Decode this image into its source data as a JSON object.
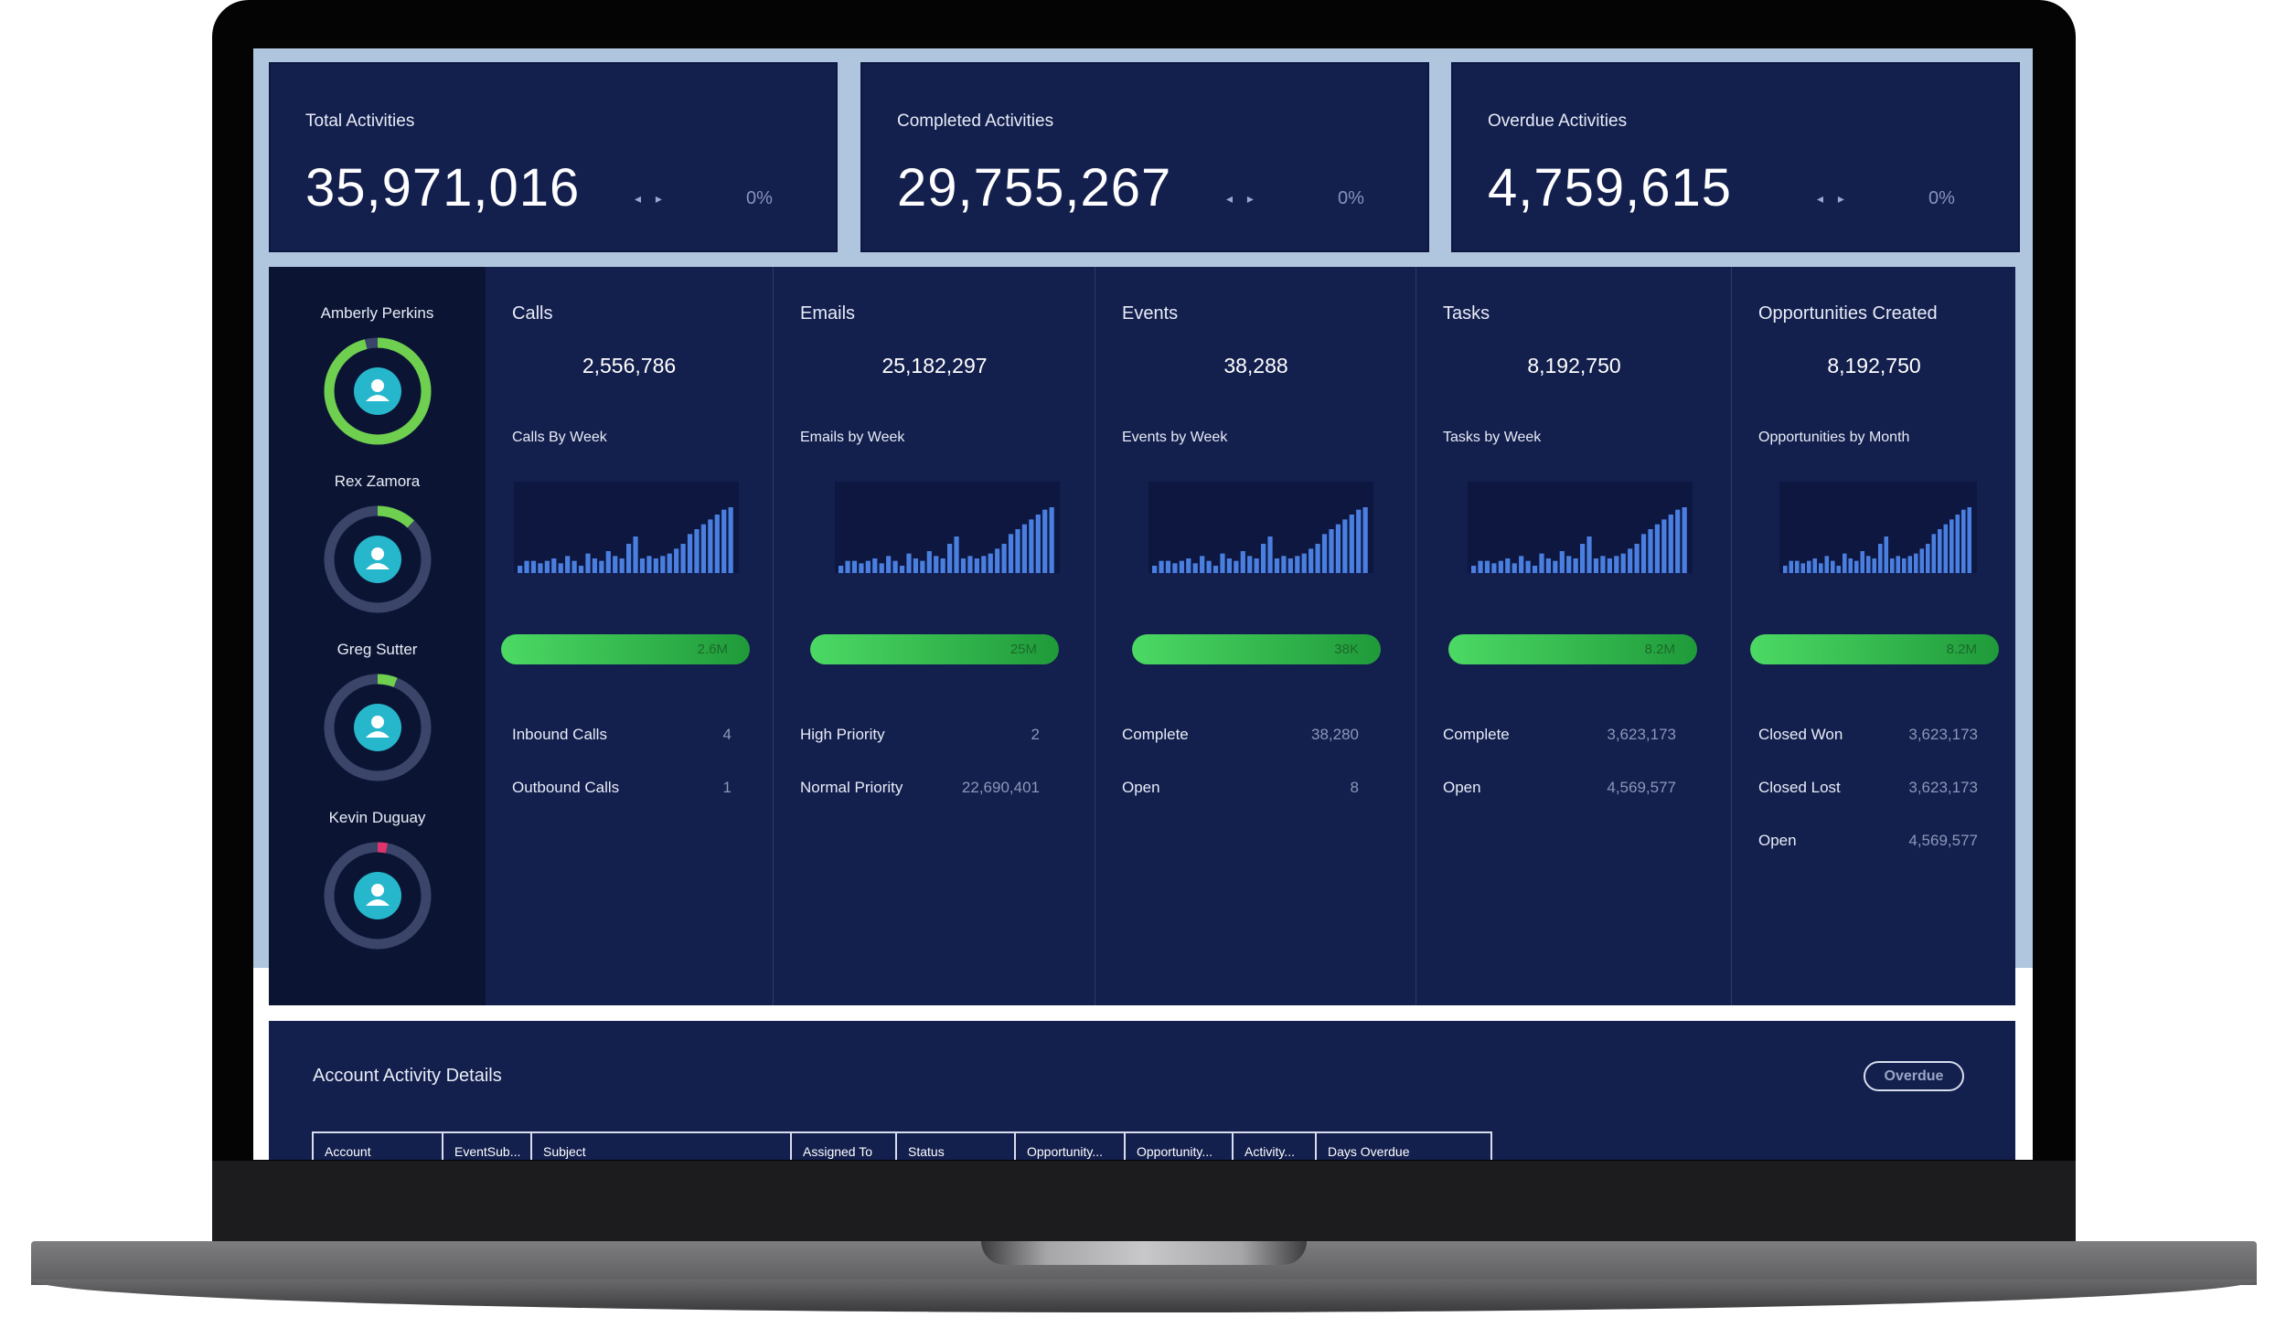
{
  "colors": {
    "panel_bg": "#131f4d",
    "sidebar_bg": "#0b1533",
    "screen_bg": "#b0c6de",
    "accent_green": "#4cd964",
    "bar_blue": "#4a7fe0",
    "ring_track": "#3a4569",
    "avatar_teal": "#26b7cc",
    "overdue_marker": "#e0336b"
  },
  "kpis": [
    {
      "title": "Total Activities",
      "value": "35,971,016",
      "arrows": "◂ ▸",
      "pct": "0%"
    },
    {
      "title": "Completed Activities",
      "value": "29,755,267",
      "arrows": "◂ ▸",
      "pct": "0%"
    },
    {
      "title": "Overdue Activities",
      "value": "4,759,615",
      "arrows": "◂ ▸",
      "pct": "0%"
    }
  ],
  "people": [
    {
      "name": "Amberly Perkins",
      "icon": "user-avatar-icon",
      "ring_fraction": 0.96,
      "ring_color": "#6fcf4f"
    },
    {
      "name": "Rex Zamora",
      "icon": "user-avatar-icon",
      "ring_fraction": 0.12,
      "ring_color": "#6fcf4f"
    },
    {
      "name": "Greg Sutter",
      "icon": "user-avatar-icon",
      "ring_fraction": 0.06,
      "ring_color": "#6fcf4f"
    },
    {
      "name": "Kevin Duguay",
      "icon": "user-avatar-icon",
      "ring_fraction": 0.03,
      "ring_color": "#e0336b"
    }
  ],
  "metrics": [
    {
      "title": "Calls",
      "value": "2,556,786",
      "chart_title": "Calls By Week",
      "progress_label": "2.6M",
      "progress_fraction": 1.0,
      "rows": [
        {
          "label": "Inbound Calls",
          "value": "4"
        },
        {
          "label": "Outbound Calls",
          "value": "1"
        }
      ]
    },
    {
      "title": "Emails",
      "value": "25,182,297",
      "chart_title": "Emails by Week",
      "progress_label": "25M",
      "progress_fraction": 1.0,
      "rows": [
        {
          "label": "High Priority",
          "value": "2"
        },
        {
          "label": "Normal Priority",
          "value": "22,690,401"
        }
      ]
    },
    {
      "title": "Events",
      "value": "38,288",
      "chart_title": "Events by Week",
      "progress_label": "38K",
      "progress_fraction": 1.0,
      "rows": [
        {
          "label": "Complete",
          "value": "38,280"
        },
        {
          "label": "Open",
          "value": "8"
        }
      ]
    },
    {
      "title": "Tasks",
      "value": "8,192,750",
      "chart_title": "Tasks by Week",
      "progress_label": "8.2M",
      "progress_fraction": 1.0,
      "rows": [
        {
          "label": "Complete",
          "value": "3,623,173"
        },
        {
          "label": "Open",
          "value": "4,569,577"
        }
      ]
    },
    {
      "title": "Opportunities Created",
      "value": "8,192,750",
      "chart_title": "Opportunities by Month",
      "progress_label": "8.2M",
      "progress_fraction": 1.0,
      "rows": [
        {
          "label": "Closed Won",
          "value": "3,623,173"
        },
        {
          "label": "Closed Lost",
          "value": "3,623,173"
        },
        {
          "label": "Open",
          "value": "4,569,577"
        }
      ]
    }
  ],
  "chart_data": {
    "type": "bar",
    "values": [
      3,
      5,
      5,
      4,
      5,
      6,
      4,
      7,
      5,
      3,
      8,
      6,
      5,
      9,
      7,
      6,
      12,
      15,
      6,
      7,
      6,
      7,
      8,
      10,
      12,
      16,
      18,
      20,
      22,
      24,
      26,
      27
    ]
  },
  "details": {
    "title": "Account Activity Details",
    "overdue_button": "Overdue",
    "columns": [
      "Account",
      "EventSub...",
      "Subject",
      "Assigned To",
      "Status",
      "Opportunity...",
      "Opportunity...",
      "Activity...",
      "Days Overdue"
    ]
  }
}
